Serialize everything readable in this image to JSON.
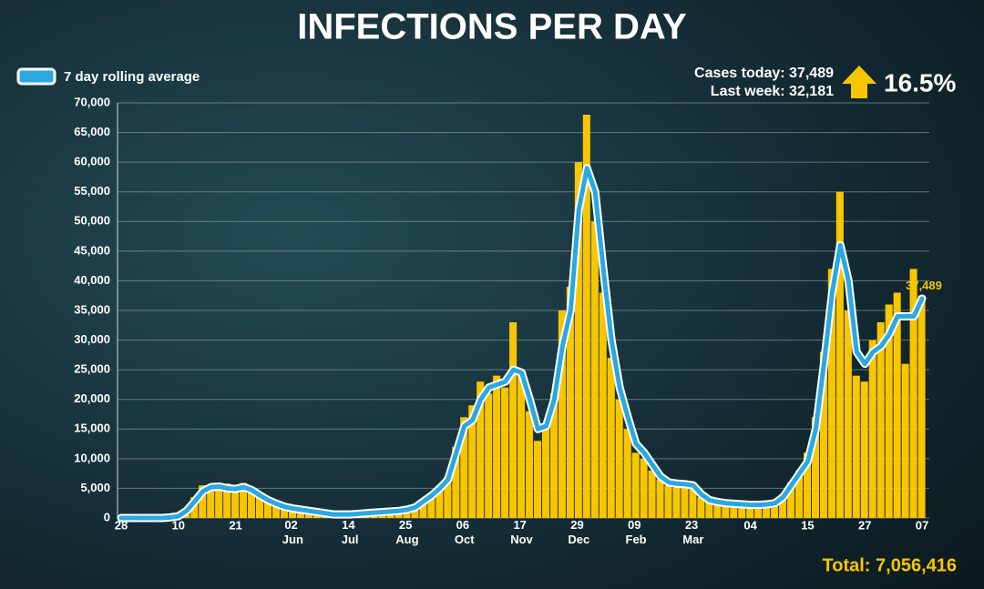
{
  "chart_data": {
    "type": "bar",
    "title": "INFECTIONS PER DAY",
    "color": "#f7c600",
    "categories": [
      "28",
      null,
      null,
      null,
      null,
      null,
      null,
      "10",
      null,
      null,
      null,
      null,
      null,
      null,
      "21",
      null,
      null,
      null,
      null,
      null,
      null,
      "02 Jun",
      null,
      null,
      null,
      null,
      null,
      null,
      "14 Jul",
      null,
      null,
      null,
      null,
      null,
      null,
      "25 Aug",
      null,
      null,
      null,
      null,
      null,
      null,
      "06 Oct",
      null,
      null,
      null,
      null,
      null,
      null,
      "17 Nov",
      null,
      null,
      null,
      null,
      null,
      null,
      "29 Dec",
      null,
      null,
      null,
      null,
      null,
      null,
      "09 Feb",
      null,
      null,
      null,
      null,
      null,
      null,
      "23 Mar",
      null,
      null,
      null,
      null,
      null,
      null,
      "04",
      null,
      null,
      null,
      null,
      null,
      null,
      "15",
      null,
      null,
      null,
      null,
      null,
      null,
      "27",
      null,
      null,
      null,
      null,
      null,
      null,
      "07"
    ],
    "values": [
      0,
      0,
      0,
      0,
      0,
      100,
      200,
      400,
      1500,
      3500,
      5500,
      5000,
      4800,
      5800,
      4500,
      5900,
      4200,
      3500,
      2600,
      2200,
      1700,
      1500,
      1200,
      1100,
      900,
      700,
      600,
      700,
      500,
      800,
      900,
      1000,
      1100,
      1300,
      1200,
      1500,
      2100,
      3000,
      4200,
      5500,
      7000,
      12000,
      17000,
      19000,
      23000,
      21000,
      24000,
      22000,
      33000,
      25000,
      18000,
      13000,
      16000,
      21000,
      35000,
      39000,
      60000,
      68000,
      50000,
      38000,
      27000,
      20000,
      15000,
      11000,
      10000,
      8000,
      6500,
      5500,
      5200,
      5900,
      5000,
      3500,
      2800,
      2500,
      2300,
      2200,
      2000,
      2000,
      2300,
      2400,
      2800,
      4000,
      6000,
      8000,
      11000,
      17000,
      28000,
      42000,
      55000,
      35000,
      24000,
      23000,
      30000,
      33000,
      36000,
      38000,
      26000,
      42000,
      37489
    ],
    "series": [
      {
        "name": "7 day rolling average",
        "color": "#2aa8e0",
        "values": [
          0,
          0,
          0,
          0,
          0,
          0,
          100,
          300,
          1200,
          2800,
          4500,
          5200,
          5300,
          5000,
          4900,
          5200,
          4700,
          3800,
          3000,
          2400,
          1900,
          1600,
          1400,
          1200,
          1000,
          800,
          600,
          600,
          600,
          700,
          800,
          900,
          1000,
          1100,
          1200,
          1400,
          1800,
          2800,
          3800,
          5000,
          6500,
          11000,
          15500,
          16500,
          20000,
          22000,
          22500,
          23000,
          25000,
          24500,
          20000,
          15000,
          15500,
          20000,
          29000,
          35000,
          52000,
          59000,
          55000,
          42000,
          30000,
          22000,
          17000,
          12500,
          11000,
          9000,
          7000,
          6000,
          5800,
          5700,
          5500,
          4000,
          3000,
          2700,
          2500,
          2400,
          2300,
          2200,
          2200,
          2300,
          2500,
          3500,
          5500,
          7500,
          9500,
          15000,
          26000,
          38000,
          46000,
          40000,
          28000,
          26000,
          28000,
          29000,
          31000,
          34000,
          34000,
          34000,
          37000
        ]
      }
    ],
    "ylim": [
      0,
      70000
    ],
    "yticks": [
      0,
      {
        "value": 5000,
        "label": "5,000"
      },
      {
        "value": 10000,
        "label": "10,000"
      },
      {
        "value": 15000,
        "label": "15,000"
      },
      {
        "value": 20000,
        "label": "20,000"
      },
      {
        "value": 25000,
        "label": "25,000"
      },
      {
        "value": 30000,
        "label": "30,000"
      },
      {
        "value": 35000,
        "label": "35,000"
      },
      {
        "value": 40000,
        "label": "40,000"
      },
      {
        "value": 45000,
        "label": "45,000"
      },
      {
        "value": 50000,
        "label": "50,000"
      },
      {
        "value": 55000,
        "label": "55,000"
      },
      {
        "value": 60000,
        "label": "60,000"
      },
      {
        "value": 65000,
        "label": "65,000"
      },
      {
        "value": 70000,
        "label": "70,000"
      }
    ],
    "grid": true,
    "value_label": "37,489",
    "annotations": {
      "cases_today": "Cases today: 37,489",
      "last_week": "Last week: 32,181",
      "change": "16.5%",
      "total": "Total: 7,056,416"
    }
  }
}
